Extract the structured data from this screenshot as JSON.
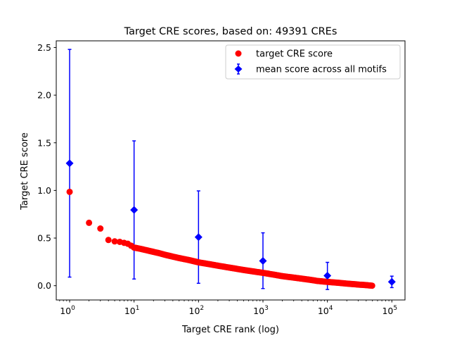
{
  "chart_data": {
    "type": "scatter",
    "title": "Target CRE scores, based on: 49391 CREs",
    "xlabel": "Target CRE rank (log)",
    "ylabel": "Target CRE score",
    "xscale": "log",
    "xlim": [
      0.62,
      160000
    ],
    "ylim": [
      -0.15,
      2.57
    ],
    "x_ticks": [
      {
        "value": 1,
        "base": "10",
        "exp": "0"
      },
      {
        "value": 10,
        "base": "10",
        "exp": "1"
      },
      {
        "value": 100,
        "base": "10",
        "exp": "2"
      },
      {
        "value": 1000,
        "base": "10",
        "exp": "3"
      },
      {
        "value": 10000,
        "base": "10",
        "exp": "4"
      },
      {
        "value": 100000,
        "base": "10",
        "exp": "5"
      }
    ],
    "y_ticks": [
      {
        "value": 0.0,
        "label": "0.0"
      },
      {
        "value": 0.5,
        "label": "0.5"
      },
      {
        "value": 1.0,
        "label": "1.0"
      },
      {
        "value": 1.5,
        "label": "1.5"
      },
      {
        "value": 2.0,
        "label": "2.0"
      },
      {
        "value": 2.5,
        "label": "2.5"
      }
    ],
    "grid": false,
    "legend_position": "top-right",
    "series": [
      {
        "name": "target CRE score",
        "marker": "circle",
        "color": "#ff0000",
        "points": [
          [
            1,
            0.985
          ],
          [
            2,
            0.66
          ],
          [
            3,
            0.6
          ],
          [
            4,
            0.48
          ],
          [
            5,
            0.465
          ],
          [
            6,
            0.46
          ],
          [
            7,
            0.45
          ],
          [
            8,
            0.44
          ],
          [
            9,
            0.42
          ],
          [
            10,
            0.4
          ],
          [
            12,
            0.39
          ],
          [
            15,
            0.375
          ],
          [
            20,
            0.355
          ],
          [
            25,
            0.34
          ],
          [
            30,
            0.325
          ],
          [
            40,
            0.305
          ],
          [
            50,
            0.29
          ],
          [
            70,
            0.27
          ],
          [
            100,
            0.245
          ],
          [
            150,
            0.225
          ],
          [
            200,
            0.21
          ],
          [
            300,
            0.19
          ],
          [
            500,
            0.165
          ],
          [
            700,
            0.15
          ],
          [
            1000,
            0.135
          ],
          [
            1500,
            0.115
          ],
          [
            2000,
            0.1
          ],
          [
            3000,
            0.085
          ],
          [
            5000,
            0.065
          ],
          [
            7000,
            0.05
          ],
          [
            10000,
            0.04
          ],
          [
            15000,
            0.03
          ],
          [
            20000,
            0.022
          ],
          [
            30000,
            0.012
          ],
          [
            40000,
            0.006
          ],
          [
            49391,
            0.0
          ]
        ]
      },
      {
        "name": "mean score across all motifs",
        "marker": "diamond",
        "color": "#0000ff",
        "errorbars": true,
        "points": [
          {
            "x": 1,
            "y": 1.285,
            "low": 0.09,
            "high": 2.48
          },
          {
            "x": 10,
            "y": 0.795,
            "low": 0.07,
            "high": 1.52
          },
          {
            "x": 100,
            "y": 0.51,
            "low": 0.025,
            "high": 0.995
          },
          {
            "x": 1000,
            "y": 0.26,
            "low": -0.03,
            "high": 0.555
          },
          {
            "x": 10000,
            "y": 0.105,
            "low": -0.04,
            "high": 0.245
          },
          {
            "x": 100000,
            "y": 0.04,
            "low": -0.02,
            "high": 0.1
          }
        ]
      }
    ]
  }
}
